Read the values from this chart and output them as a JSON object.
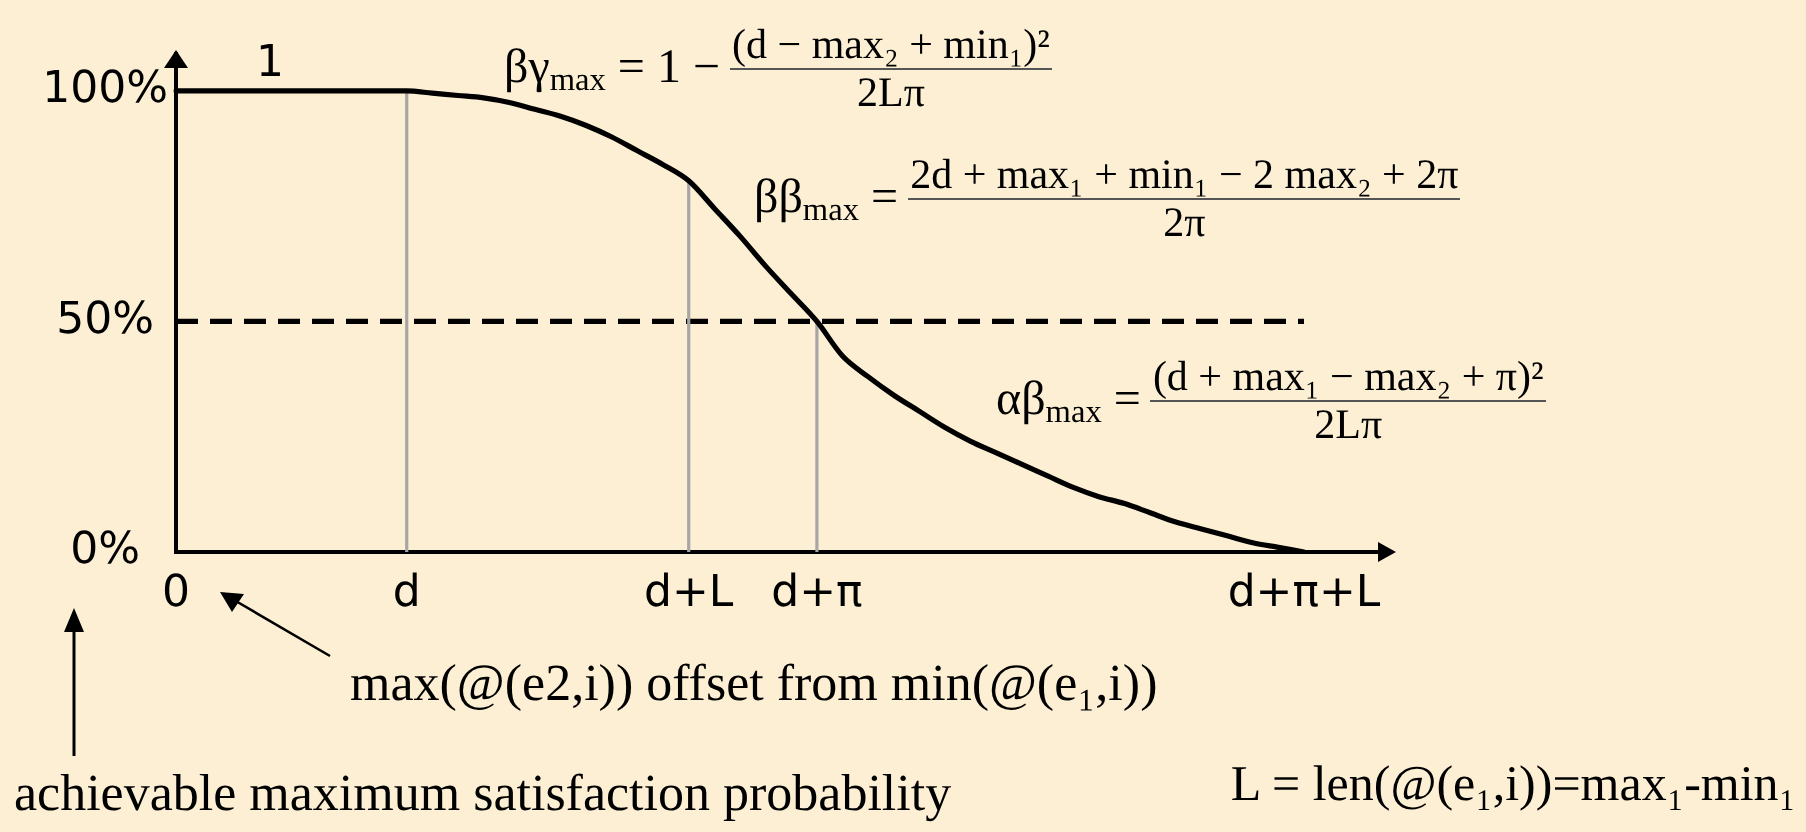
{
  "chart_data": {
    "type": "line",
    "categories": [
      "0",
      null,
      null,
      null,
      null,
      null,
      null,
      null,
      null,
      "d",
      null,
      null,
      null,
      null,
      null,
      null,
      null,
      null,
      null,
      null,
      "d+L",
      null,
      null,
      null,
      null,
      "d+π",
      null,
      null,
      null,
      null,
      null,
      null,
      null,
      null,
      null,
      null,
      null,
      null,
      null,
      null,
      null,
      null,
      null,
      null,
      "d+π+L"
    ],
    "values": [
      100,
      100,
      100,
      100,
      100,
      100,
      100,
      100,
      100,
      100,
      99.5,
      99,
      98.5,
      97.5,
      96,
      94.5,
      92.5,
      90,
      87,
      84,
      80.5,
      74.5,
      68.5,
      62,
      56,
      50,
      42.5,
      38,
      34,
      30.5,
      27,
      24,
      21.5,
      19,
      16.5,
      14,
      12,
      10.5,
      8.5,
      6.5,
      5,
      3.5,
      2,
      1,
      0
    ],
    "color": "#000000",
    "ylim": [
      0,
      108
    ],
    "yticks": [
      {
        "value": 0,
        "label": "0%"
      },
      {
        "value": 50,
        "label": "50%"
      },
      {
        "value": 100,
        "label": "100%"
      }
    ],
    "xlabel": "max(@(e2,i)) offset from min(@(e₁,i))",
    "ylabel": "achievable maximum satisfaction probability",
    "annotations": [
      "1",
      "βγ$_{max}$ = 1 −",
      "(d − max₂ + min₁)²",
      "2Lπ",
      "ββ$_{max}$ =",
      "2d + max₁ + min₁ − 2 max₂ + 2π",
      "2π",
      "αβ$_{max}$ =",
      "(d + max₁ − max₂ + π)²",
      "2Lπ",
      "L = len(@(e₁,i))=max₁-min₁"
    ],
    "ref_lines": [
      {
        "axis": "y",
        "value": 50,
        "color": "#000000",
        "line_style": "dashed"
      },
      {
        "axis": "x",
        "value": "d",
        "color": "#a6a6a6"
      },
      {
        "axis": "x",
        "value": "d+L",
        "color": "#a6a6a6"
      },
      {
        "axis": "x",
        "value": "d+π",
        "color": "#a6a6a6"
      }
    ],
    "grid": false,
    "legend": false,
    "marker": "none",
    "line_style": "solid"
  }
}
